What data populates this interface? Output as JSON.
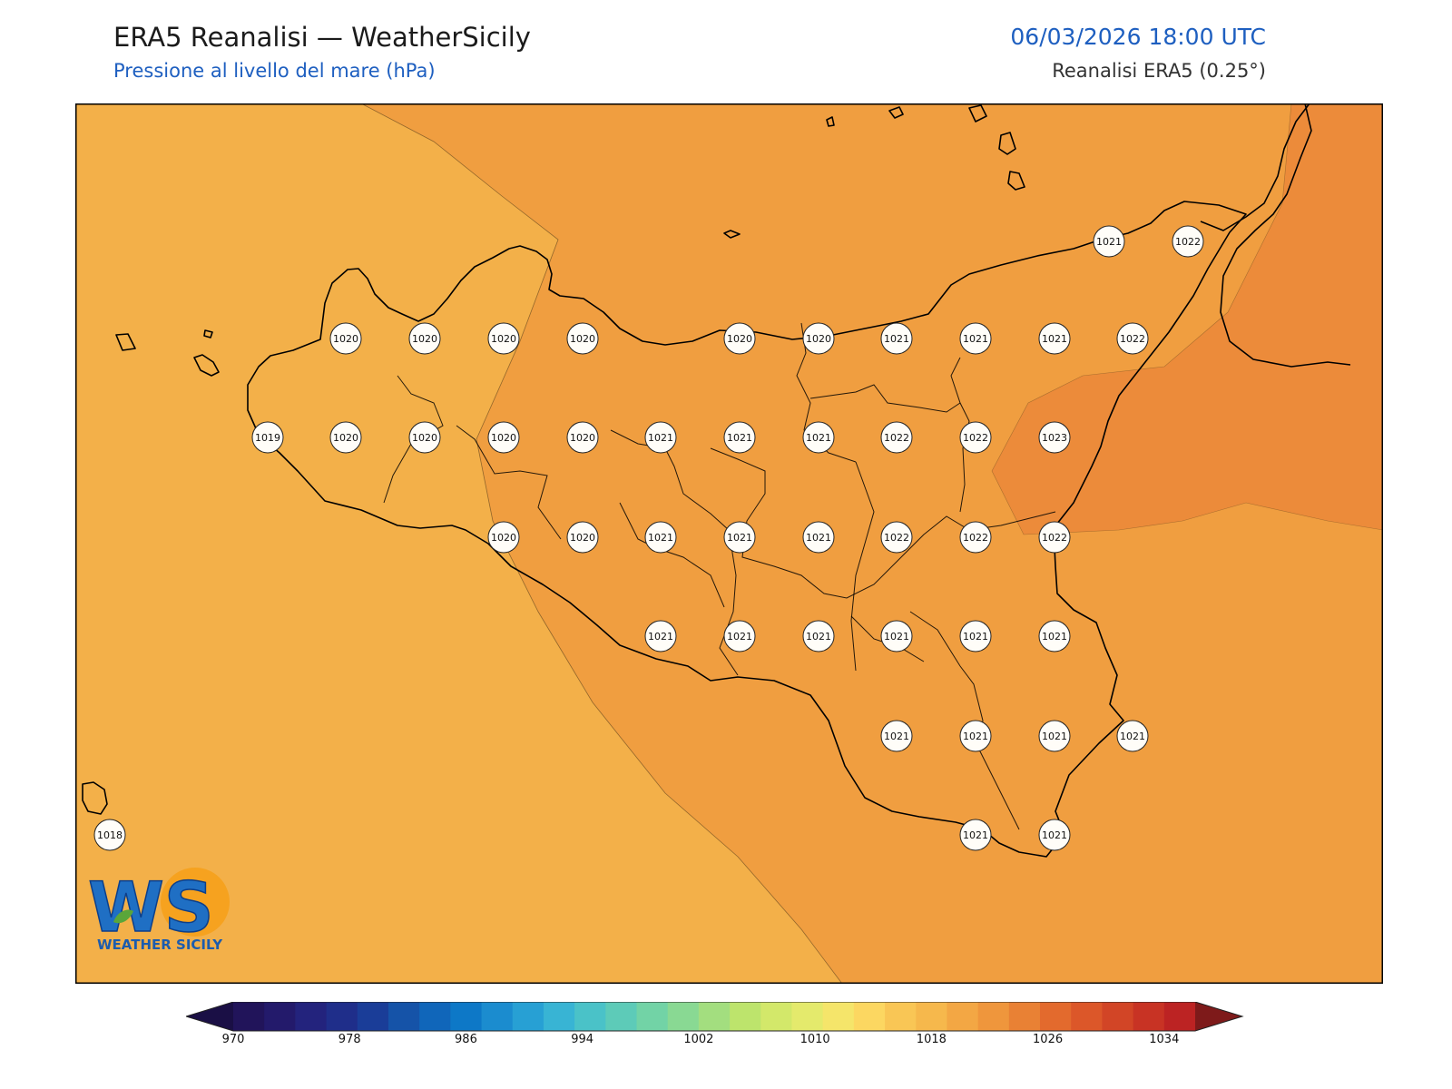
{
  "header": {
    "title": "ERA5 Reanalisi — WeatherSicily",
    "subtitle": "Pressione al livello del mare (hPa)",
    "datetime": "06/03/2026 18:00 UTC",
    "source": "Reanalisi ERA5 (0.25°)"
  },
  "logo": {
    "letters": "WS",
    "brand": "WEATHER SICILY"
  },
  "stations": {
    "row1": [
      "1021",
      "1022"
    ],
    "row2": [
      "1020",
      "1020",
      "1020",
      "1020",
      "1020",
      "1020",
      "1021",
      "1021",
      "1021",
      "1022"
    ],
    "row3": [
      "1019",
      "1020",
      "1020",
      "1020",
      "1020",
      "1021",
      "1021",
      "1021",
      "1022",
      "1022",
      "1023"
    ],
    "row4": [
      "1020",
      "1020",
      "1021",
      "1021",
      "1021",
      "1022",
      "1022",
      "1022"
    ],
    "row5": [
      "1021",
      "1021",
      "1021",
      "1021",
      "1021",
      "1021"
    ],
    "row6": [
      "1021",
      "1021",
      "1021",
      "1021"
    ],
    "row7": [
      "1018",
      "1021",
      "1021"
    ]
  },
  "colorbar": {
    "ticks": [
      "970",
      "978",
      "986",
      "994",
      "1002",
      "1010",
      "1018",
      "1026",
      "1034"
    ],
    "colors": [
      "#21145a",
      "#231a6b",
      "#23237d",
      "#1f2e8a",
      "#1a3d98",
      "#1553a8",
      "#1066ba",
      "#0d78c7",
      "#1b8ccf",
      "#27a0d4",
      "#38b4d4",
      "#4ac2c8",
      "#5dcbb8",
      "#72d3a6",
      "#89d993",
      "#a3de7f",
      "#bde46c",
      "#d3e86a",
      "#e4ea6c",
      "#f5e56a",
      "#fcd761",
      "#f9c655",
      "#f6b84c",
      "#f3a744",
      "#ef963c",
      "#e98134",
      "#e36a2d",
      "#dc5729",
      "#d24526",
      "#c83324",
      "#bc2323"
    ],
    "under_color": "#1a0f45",
    "over_color": "#7e1a1a"
  },
  "fill_colors": {
    "1018": "#f3b049",
    "1020": "#f09e40",
    "1022": "#ec8b3a"
  }
}
